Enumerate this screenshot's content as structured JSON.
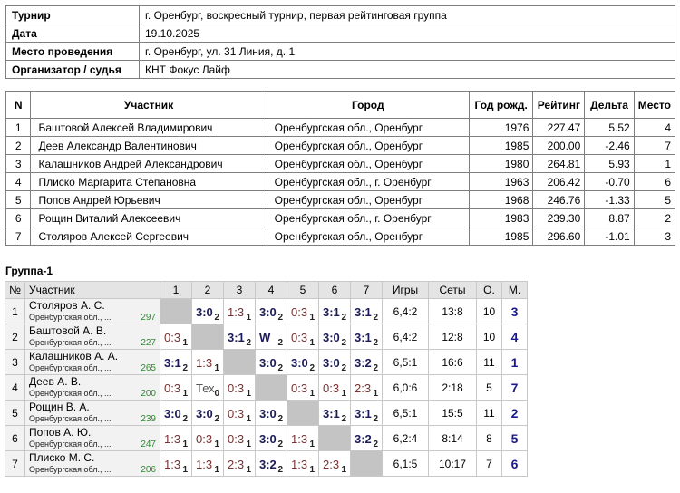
{
  "info": [
    {
      "key": "Турнир",
      "value": "г. Оренбург, воскресный турнир, первая рейтинговая группа"
    },
    {
      "key": "Дата",
      "value": "19.10.2025"
    },
    {
      "key": "Место проведения",
      "value": "г. Оренбург, ул. 31 Линия, д. 1"
    },
    {
      "key": "Организатор / судья",
      "value": "КНТ Фокус Лайф"
    }
  ],
  "participants": {
    "headers": {
      "n": "N",
      "name": "Участник",
      "city": "Город",
      "year": "Год рожд.",
      "rating": "Рейтинг",
      "delta": "Дельта",
      "place": "Место"
    },
    "rows": [
      {
        "n": "1",
        "name": "Баштовой Алексей Владимирович",
        "city": "Оренбургская обл., Оренбург",
        "year": "1976",
        "rating": "227.47",
        "delta": "5.52",
        "place": "4"
      },
      {
        "n": "2",
        "name": "Деев Александр Валентинович",
        "city": "Оренбургская обл., Оренбург",
        "year": "1985",
        "rating": "200.00",
        "delta": "-2.46",
        "place": "7"
      },
      {
        "n": "3",
        "name": "Калашников Андрей Александрович",
        "city": "Оренбургская обл., Оренбург",
        "year": "1980",
        "rating": "264.81",
        "delta": "5.93",
        "place": "1"
      },
      {
        "n": "4",
        "name": "Плиско Маргарита Степановна",
        "city": "Оренбургская обл., г. Оренбург",
        "year": "1963",
        "rating": "206.42",
        "delta": "-0.70",
        "place": "6"
      },
      {
        "n": "5",
        "name": "Попов Андрей Юрьевич",
        "city": "Оренбургская обл., Оренбург",
        "year": "1968",
        "rating": "246.76",
        "delta": "-1.33",
        "place": "5"
      },
      {
        "n": "6",
        "name": "Рощин Виталий Алексеевич",
        "city": "Оренбургская обл., г. Оренбург",
        "year": "1983",
        "rating": "239.30",
        "delta": "8.87",
        "place": "2"
      },
      {
        "n": "7",
        "name": "Столяров Алексей Сергеевич",
        "city": "Оренбургская обл., Оренбург",
        "year": "1985",
        "rating": "296.60",
        "delta": "-1.01",
        "place": "3"
      }
    ]
  },
  "group": {
    "title": "Группа-1",
    "headers": {
      "no": "№",
      "player": "Участник",
      "cols": [
        "1",
        "2",
        "3",
        "4",
        "5",
        "6",
        "7"
      ],
      "games": "Игры",
      "sets": "Сеты",
      "points": "О.",
      "place": "М."
    },
    "rows": [
      {
        "no": "1",
        "name": "Столяров А. С.",
        "city": "Оренбургская обл., ...",
        "rating": "297",
        "cells": [
          null,
          {
            "s": "3:0",
            "p": "2",
            "r": "w"
          },
          {
            "s": "1:3",
            "p": "1",
            "r": "l"
          },
          {
            "s": "3:0",
            "p": "2",
            "r": "w"
          },
          {
            "s": "0:3",
            "p": "1",
            "r": "l"
          },
          {
            "s": "3:1",
            "p": "2",
            "r": "w"
          },
          {
            "s": "3:1",
            "p": "2",
            "r": "w"
          }
        ],
        "games": "6,4:2",
        "sets": "13:8",
        "points": "10",
        "place": "3"
      },
      {
        "no": "2",
        "name": "Баштовой А. В.",
        "city": "Оренбургская обл., ...",
        "rating": "227",
        "cells": [
          {
            "s": "0:3",
            "p": "1",
            "r": "l"
          },
          null,
          {
            "s": "3:1",
            "p": "2",
            "r": "w"
          },
          {
            "s": "W",
            "p": "2",
            "r": "w"
          },
          {
            "s": "0:3",
            "p": "1",
            "r": "l"
          },
          {
            "s": "3:0",
            "p": "2",
            "r": "w"
          },
          {
            "s": "3:1",
            "p": "2",
            "r": "w"
          }
        ],
        "games": "6,4:2",
        "sets": "12:8",
        "points": "10",
        "place": "4"
      },
      {
        "no": "3",
        "name": "Калашников А. А.",
        "city": "Оренбургская обл., ...",
        "rating": "265",
        "cells": [
          {
            "s": "3:1",
            "p": "2",
            "r": "w"
          },
          {
            "s": "1:3",
            "p": "1",
            "r": "l"
          },
          null,
          {
            "s": "3:0",
            "p": "2",
            "r": "w"
          },
          {
            "s": "3:0",
            "p": "2",
            "r": "w"
          },
          {
            "s": "3:0",
            "p": "2",
            "r": "w"
          },
          {
            "s": "3:2",
            "p": "2",
            "r": "w"
          }
        ],
        "games": "6,5:1",
        "sets": "16:6",
        "points": "11",
        "place": "1"
      },
      {
        "no": "4",
        "name": "Деев А. В.",
        "city": "Оренбургская обл., ...",
        "rating": "200",
        "cells": [
          {
            "s": "0:3",
            "p": "1",
            "r": "l"
          },
          {
            "s": "Тех",
            "p": "0",
            "r": "t"
          },
          {
            "s": "0:3",
            "p": "1",
            "r": "l"
          },
          null,
          {
            "s": "0:3",
            "p": "1",
            "r": "l"
          },
          {
            "s": "0:3",
            "p": "1",
            "r": "l"
          },
          {
            "s": "2:3",
            "p": "1",
            "r": "l"
          }
        ],
        "games": "6,0:6",
        "sets": "2:18",
        "points": "5",
        "place": "7"
      },
      {
        "no": "5",
        "name": "Рощин В. А.",
        "city": "Оренбургская обл., ...",
        "rating": "239",
        "cells": [
          {
            "s": "3:0",
            "p": "2",
            "r": "w"
          },
          {
            "s": "3:0",
            "p": "2",
            "r": "w"
          },
          {
            "s": "0:3",
            "p": "1",
            "r": "l"
          },
          {
            "s": "3:0",
            "p": "2",
            "r": "w"
          },
          null,
          {
            "s": "3:1",
            "p": "2",
            "r": "w"
          },
          {
            "s": "3:1",
            "p": "2",
            "r": "w"
          }
        ],
        "games": "6,5:1",
        "sets": "15:5",
        "points": "11",
        "place": "2"
      },
      {
        "no": "6",
        "name": "Попов А. Ю.",
        "city": "Оренбургская обл., ...",
        "rating": "247",
        "cells": [
          {
            "s": "1:3",
            "p": "1",
            "r": "l"
          },
          {
            "s": "0:3",
            "p": "1",
            "r": "l"
          },
          {
            "s": "0:3",
            "p": "1",
            "r": "l"
          },
          {
            "s": "3:0",
            "p": "2",
            "r": "w"
          },
          {
            "s": "1:3",
            "p": "1",
            "r": "l"
          },
          null,
          {
            "s": "3:2",
            "p": "2",
            "r": "w"
          }
        ],
        "games": "6,2:4",
        "sets": "8:14",
        "points": "8",
        "place": "5"
      },
      {
        "no": "7",
        "name": "Плиско М. С.",
        "city": "Оренбургская обл., ...",
        "rating": "206",
        "cells": [
          {
            "s": "1:3",
            "p": "1",
            "r": "l"
          },
          {
            "s": "1:3",
            "p": "1",
            "r": "l"
          },
          {
            "s": "2:3",
            "p": "1",
            "r": "l"
          },
          {
            "s": "3:2",
            "p": "2",
            "r": "w"
          },
          {
            "s": "1:3",
            "p": "1",
            "r": "l"
          },
          {
            "s": "2:3",
            "p": "1",
            "r": "l"
          },
          null
        ],
        "games": "6,1:5",
        "sets": "10:17",
        "points": "7",
        "place": "6"
      }
    ]
  }
}
